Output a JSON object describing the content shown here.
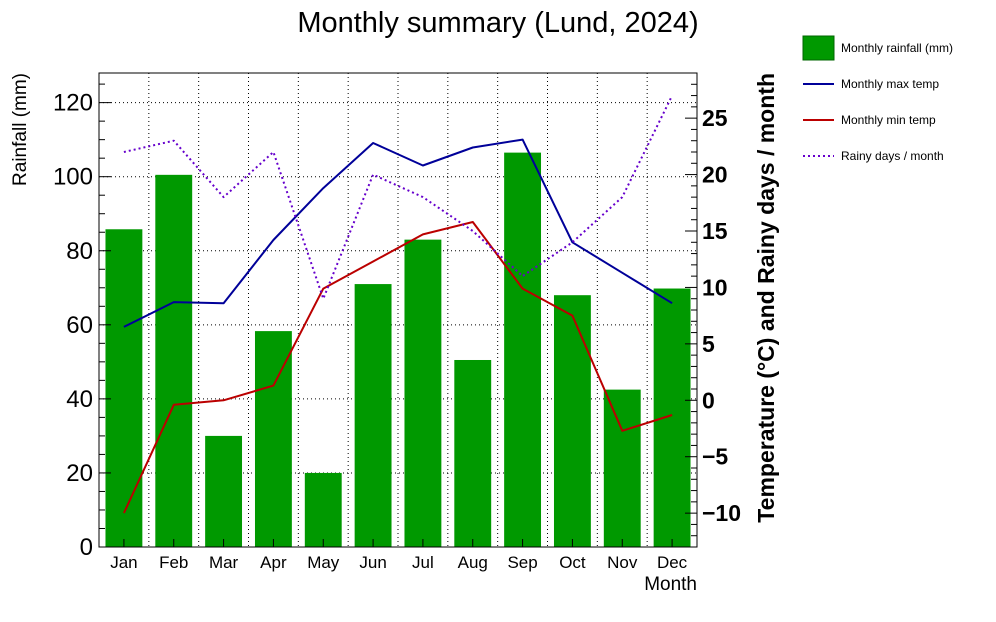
{
  "chart_data": {
    "type": "bar",
    "title": "Monthly summary (Lund, 2024)",
    "xlabel": "Month",
    "ylabel": "Rainfall (mm)",
    "y2label": "Temperature (°C) and Rainy days / month",
    "categories": [
      "Jan",
      "Feb",
      "Mar",
      "Apr",
      "May",
      "Jun",
      "Jul",
      "Aug",
      "Sep",
      "Oct",
      "Nov",
      "Dec"
    ],
    "ylim": [
      0,
      128
    ],
    "y2lim": [
      -13,
      29
    ],
    "yticks": [
      0,
      20,
      40,
      60,
      80,
      100,
      120
    ],
    "y2ticks": [
      -10,
      -5,
      0,
      5,
      10,
      15,
      20,
      25
    ],
    "grid": true,
    "legend_position": "right",
    "series": [
      {
        "name": "Monthly rainfall (mm)",
        "kind": "bar",
        "axis": "left",
        "color": "#009900",
        "values": [
          85.8,
          100.5,
          30.0,
          58.3,
          20.0,
          71.0,
          83.0,
          50.5,
          106.5,
          68.0,
          42.5,
          69.8
        ]
      },
      {
        "name": "Monthly max temp",
        "kind": "line",
        "axis": "right",
        "color": "#000099",
        "values": [
          6.5,
          8.7,
          8.6,
          14.2,
          18.8,
          22.8,
          20.8,
          22.4,
          23.1,
          14.0,
          11.3,
          8.6
        ]
      },
      {
        "name": "Monthly min temp",
        "kind": "line",
        "axis": "right",
        "color": "#bb0000",
        "values": [
          -10.0,
          -0.4,
          0.0,
          1.3,
          9.9,
          12.3,
          14.7,
          15.8,
          9.9,
          7.5,
          -2.7,
          -1.3
        ]
      },
      {
        "name": "Rainy days / month",
        "kind": "dotted-line",
        "axis": "right",
        "color": "#6600cc",
        "values": [
          22.0,
          23.0,
          18.0,
          22.0,
          9.0,
          20.0,
          18.0,
          15.0,
          11.0,
          14.0,
          18.0,
          27.0
        ]
      }
    ]
  }
}
